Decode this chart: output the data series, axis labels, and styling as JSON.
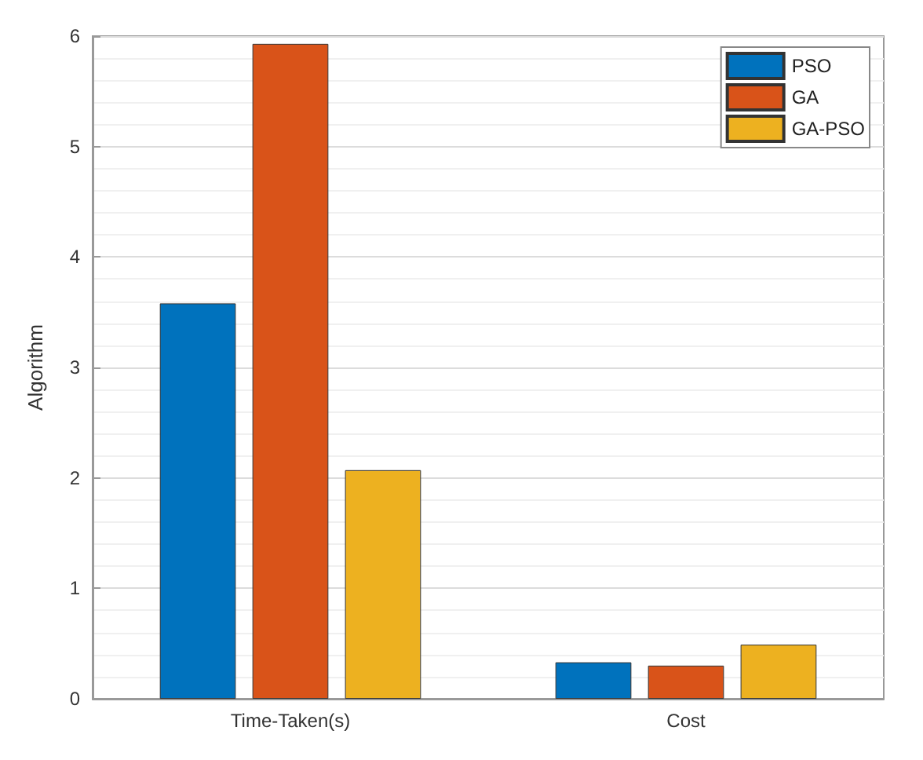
{
  "chart_data": {
    "type": "bar",
    "ylabel": "Algorithm",
    "categories": [
      "Time-Taken(s)",
      "Cost"
    ],
    "series": [
      {
        "name": "PSO",
        "color": "#0072bd",
        "values": [
          3.58,
          0.33
        ]
      },
      {
        "name": "GA",
        "color": "#d95319",
        "values": [
          5.93,
          0.3
        ]
      },
      {
        "name": "GA-PSO",
        "color": "#edb120",
        "values": [
          2.07,
          0.49
        ]
      }
    ],
    "ylim": [
      0,
      6
    ],
    "yticks": [
      0,
      1,
      2,
      3,
      4,
      5,
      6
    ],
    "grid": "y",
    "legend": "top right"
  }
}
